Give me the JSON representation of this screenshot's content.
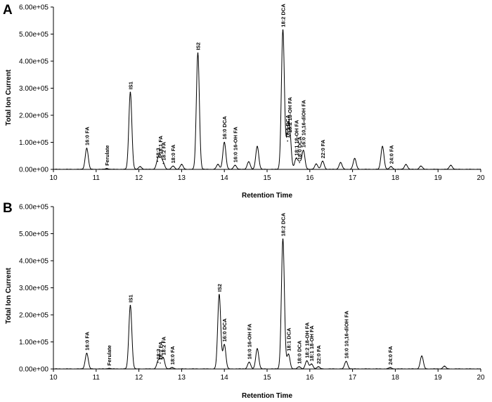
{
  "chart_data": [
    {
      "type": "line",
      "panel_letter": "A",
      "xlabel": "Retention Time",
      "ylabel": "Total Ion Current",
      "xlim": [
        10,
        20
      ],
      "ylim": [
        0,
        600000
      ],
      "x_ticks": [
        "10",
        "11",
        "12",
        "13",
        "14",
        "15",
        "16",
        "17",
        "18",
        "19",
        "20"
      ],
      "y_ticks": [
        "0.00E+00",
        "1.00E+05",
        "2.00E+05",
        "3.00E+05",
        "4.00E+05",
        "5.00E+05",
        "6.00E+05"
      ],
      "peaks": [
        {
          "x": 10.78,
          "y": 78000,
          "label": "16:0 FA"
        },
        {
          "x": 11.25,
          "y": 3000,
          "label": "Ferulate"
        },
        {
          "x": 11.8,
          "y": 285000,
          "label": "IS1"
        },
        {
          "x": 12.03,
          "y": 10000,
          "label": ""
        },
        {
          "x": 12.44,
          "y": 30000,
          "label": "18:3"
        },
        {
          "x": 12.5,
          "y": 45000,
          "label": "18:1 FA"
        },
        {
          "x": 12.57,
          "y": 22000,
          "label": "18:2 FA"
        },
        {
          "x": 12.8,
          "y": 12000,
          "label": "18:0 FA"
        },
        {
          "x": 13.0,
          "y": 18000,
          "label": ""
        },
        {
          "x": 13.38,
          "y": 430000,
          "label": "IS2"
        },
        {
          "x": 13.85,
          "y": 18000,
          "label": ""
        },
        {
          "x": 14.0,
          "y": 100000,
          "label": "16:0 DCA"
        },
        {
          "x": 14.25,
          "y": 15000,
          "label": "16:0 16-OH FA"
        },
        {
          "x": 14.57,
          "y": 28000,
          "label": ""
        },
        {
          "x": 14.77,
          "y": 85000,
          "label": ""
        },
        {
          "x": 15.37,
          "y": 515000,
          "label": "18:2 DCA"
        },
        {
          "x": 15.48,
          "y": 105000,
          "label": "18:1 DCA"
        },
        {
          "x": 15.53,
          "y": 125000,
          "label": "18:2 18-OH FA"
        },
        {
          "x": 15.68,
          "y": 40000,
          "label": "18:1 18-OH FA"
        },
        {
          "x": 15.76,
          "y": 25000,
          "label": "18:0 DCA"
        },
        {
          "x": 15.85,
          "y": 70000,
          "label": "16:0 10,16-diOH FA"
        },
        {
          "x": 16.15,
          "y": 20000,
          "label": ""
        },
        {
          "x": 16.3,
          "y": 30000,
          "label": "22:0 FA"
        },
        {
          "x": 16.72,
          "y": 25000,
          "label": ""
        },
        {
          "x": 17.05,
          "y": 40000,
          "label": ""
        },
        {
          "x": 17.7,
          "y": 85000,
          "label": ""
        },
        {
          "x": 17.9,
          "y": 10000,
          "label": "24:0 FA"
        },
        {
          "x": 18.25,
          "y": 18000,
          "label": ""
        },
        {
          "x": 18.6,
          "y": 12000,
          "label": ""
        },
        {
          "x": 19.3,
          "y": 15000,
          "label": ""
        }
      ]
    },
    {
      "type": "line",
      "panel_letter": "B",
      "xlabel": "Retention Time",
      "ylabel": "Total Ion Current",
      "xlim": [
        10,
        20
      ],
      "ylim": [
        0,
        600000
      ],
      "x_ticks": [
        "10",
        "11",
        "12",
        "13",
        "14",
        "15",
        "16",
        "17",
        "18",
        "19",
        "20"
      ],
      "y_ticks": [
        "0.00E+00",
        "1.00E+05",
        "2.00E+05",
        "3.00E+05",
        "4.00E+05",
        "5.00E+05",
        "6.00E+05"
      ],
      "peaks": [
        {
          "x": 10.78,
          "y": 58000,
          "label": "16:0 FA"
        },
        {
          "x": 11.3,
          "y": 2000,
          "label": "Ferulate"
        },
        {
          "x": 11.8,
          "y": 235000,
          "label": "IS1"
        },
        {
          "x": 12.45,
          "y": 25000,
          "label": "18:3"
        },
        {
          "x": 12.5,
          "y": 22000,
          "label": "18:1 FA"
        },
        {
          "x": 12.57,
          "y": 40000,
          "label": "18:2 FA"
        },
        {
          "x": 12.78,
          "y": 5000,
          "label": "18:0 FA"
        },
        {
          "x": 13.88,
          "y": 275000,
          "label": "IS2"
        },
        {
          "x": 14.0,
          "y": 90000,
          "label": "16:0 DCA"
        },
        {
          "x": 14.58,
          "y": 25000,
          "label": "16:0 16-OH FA"
        },
        {
          "x": 14.77,
          "y": 75000,
          "label": ""
        },
        {
          "x": 15.37,
          "y": 480000,
          "label": "18:2 DCA"
        },
        {
          "x": 15.5,
          "y": 55000,
          "label": "18:1 DCA"
        },
        {
          "x": 15.75,
          "y": 8000,
          "label": "18:0 DCA"
        },
        {
          "x": 15.93,
          "y": 30000,
          "label": "18:2 18-OH FA"
        },
        {
          "x": 16.04,
          "y": 18000,
          "label": "18:1 18-OH FA"
        },
        {
          "x": 16.2,
          "y": 8000,
          "label": "22:0 FA"
        },
        {
          "x": 16.85,
          "y": 28000,
          "label": "16:0 10,16-diOH FA"
        },
        {
          "x": 17.88,
          "y": 5000,
          "label": "24:0 FA"
        },
        {
          "x": 18.62,
          "y": 48000,
          "label": ""
        },
        {
          "x": 19.15,
          "y": 10000,
          "label": ""
        }
      ]
    }
  ]
}
